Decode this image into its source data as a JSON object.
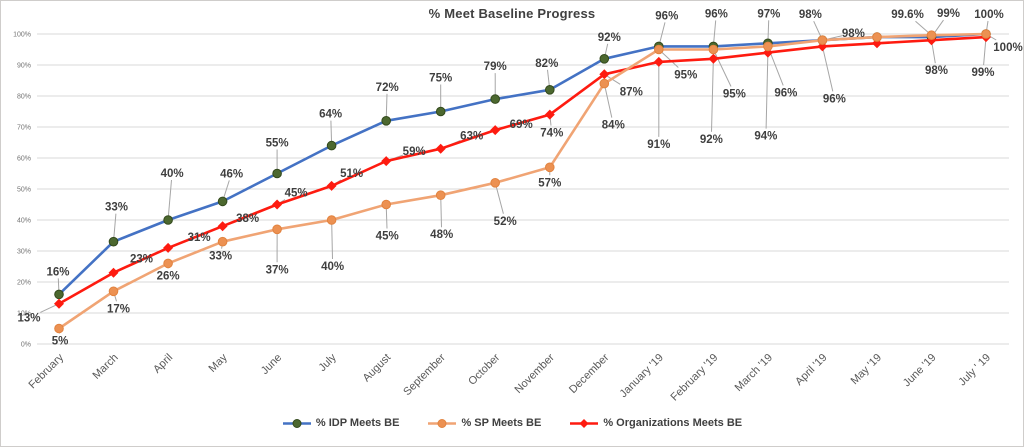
{
  "chart_data": {
    "type": "line",
    "title": "% Meet Baseline Progress",
    "legend_position": "bottom",
    "categories": [
      "February",
      "March",
      "April",
      "May",
      "June",
      "July",
      "August",
      "September",
      "October",
      "November",
      "December",
      "January '19",
      "February '19",
      "March '19",
      "April '19",
      "May '19",
      "June '19",
      "July ' 19"
    ],
    "y_axis": {
      "min": 0,
      "max": 100,
      "tick_labels": [
        "0%",
        "10%",
        "20%",
        "30%",
        "40%",
        "50%",
        "60%",
        "70%",
        "80%",
        "90%",
        "100%"
      ],
      "grid": "horizontal"
    },
    "colors": {
      "grid": "#D9D9D9",
      "leader": "#A6A6A6",
      "label_text": "#3F3F3F",
      "axis_text": "#595959",
      "tick_text": "#737373",
      "title_text": "#404040",
      "background": "#FFFFFF",
      "border": "#CFCDCB"
    },
    "series": [
      {
        "name": "% IDP Meets BE",
        "line_color": "#4472C4",
        "marker": "circle",
        "marker_color": "#4C682F",
        "marker_stroke": "#33491C",
        "values": [
          16,
          33,
          40,
          46,
          55,
          64,
          72,
          75,
          79,
          82,
          92,
          96,
          96,
          97,
          98,
          99,
          99,
          100
        ],
        "labels": [
          "16%",
          "33%",
          "40%",
          "46%",
          "55%",
          "64%",
          "72%",
          "75%",
          "79%",
          "82%",
          "92%",
          "96%",
          "96%",
          "97%",
          "98%",
          "",
          "99%",
          "100%"
        ]
      },
      {
        "name": "% SP Meets BE",
        "line_color": "#F0A474",
        "marker": "circle",
        "marker_color": "#EC9152",
        "marker_stroke": "#E2833F",
        "values": [
          5,
          17,
          26,
          33,
          37,
          40,
          45,
          48,
          52,
          57,
          84,
          95,
          95,
          96,
          98,
          99,
          99.6,
          100
        ],
        "labels": [
          "5%",
          "17%",
          "26%",
          "33%",
          "37%",
          "40%",
          "45%",
          "48%",
          "52%",
          "57%",
          "84%",
          "95%",
          "95%",
          "96%",
          "98%",
          "",
          "99.6%",
          "100%"
        ]
      },
      {
        "name": "% Organizations Meets BE",
        "line_color": "#FE1B10",
        "marker": "diamond",
        "marker_color": "#FE1B10",
        "marker_stroke": "#D81208",
        "values": [
          13,
          23,
          31,
          38,
          45,
          51,
          59,
          63,
          69,
          74,
          87,
          91,
          92,
          94,
          96,
          97,
          98,
          99
        ],
        "labels": [
          "13%",
          "23%",
          "31%",
          "38%",
          "45%",
          "51%",
          "59%",
          "63%",
          "69%",
          "74%",
          "87%",
          "91%",
          "92%",
          "94%",
          "96%",
          "",
          "98%",
          "99%"
        ]
      }
    ]
  }
}
